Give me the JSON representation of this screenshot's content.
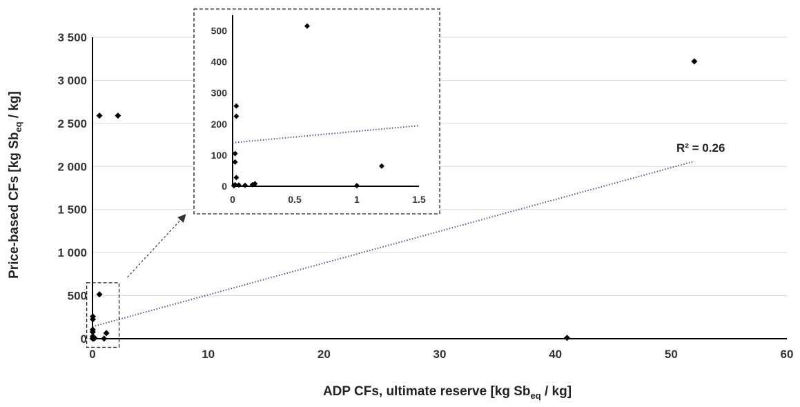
{
  "chart_data": [
    {
      "type": "scatter",
      "xlabel": "ADP CFs, ultimate reserve [kg Sb_eq / kg]",
      "ylabel": "Price-based CFs [kg Sb_eq / kg]",
      "xlabel_parts": {
        "pre": "ADP CFs, ultimate reserve [kg Sb",
        "sub": "eq",
        "post": " / kg]"
      },
      "ylabel_parts": {
        "pre": "Price-based CFs [kg Sb",
        "sub": "eq",
        "post": " / kg]"
      },
      "xlim": [
        0,
        60
      ],
      "ylim": [
        0,
        3500
      ],
      "xticks": [
        0,
        10,
        20,
        30,
        40,
        50,
        60
      ],
      "yticks": [
        0,
        500,
        1000,
        1500,
        2000,
        2500,
        3000,
        3500
      ],
      "xtick_labels": [
        "0",
        "10",
        "20",
        "30",
        "40",
        "50",
        "60"
      ],
      "ytick_labels": [
        "0",
        "500",
        "1 000",
        "1 500",
        "2 000",
        "2 500",
        "3 000",
        "3 500"
      ],
      "grid": "horizontal",
      "points": [
        {
          "x": 0.01,
          "y": 2
        },
        {
          "x": 0.02,
          "y": 5
        },
        {
          "x": 0.03,
          "y": 225
        },
        {
          "x": 0.03,
          "y": 258
        },
        {
          "x": 0.02,
          "y": 105
        },
        {
          "x": 0.02,
          "y": 78
        },
        {
          "x": 0.03,
          "y": 28
        },
        {
          "x": 0.05,
          "y": 4
        },
        {
          "x": 0.1,
          "y": 3
        },
        {
          "x": 0.16,
          "y": 5
        },
        {
          "x": 0.18,
          "y": 8
        },
        {
          "x": 0.6,
          "y": 515
        },
        {
          "x": 1.0,
          "y": 2
        },
        {
          "x": 1.2,
          "y": 65
        },
        {
          "x": 0.6,
          "y": 2590
        },
        {
          "x": 2.2,
          "y": 2590
        },
        {
          "x": 41,
          "y": 10
        },
        {
          "x": 52,
          "y": 3220
        }
      ],
      "trendline": {
        "type": "linear",
        "x": [
          0,
          52
        ],
        "y": [
          140,
          2060
        ],
        "style": "dotted",
        "color": "#4a5a86"
      },
      "annotation": "R² = 0.26",
      "marker_color": "#000000"
    },
    {
      "type": "scatter",
      "xlim": [
        0,
        1.5
      ],
      "ylim": [
        0,
        550
      ],
      "xticks": [
        0,
        0.5,
        1,
        1.5
      ],
      "yticks": [
        0,
        100,
        200,
        300,
        400,
        500
      ],
      "xtick_labels": [
        "0",
        "0.5",
        "1",
        "1.5"
      ],
      "ytick_labels": [
        "0",
        "100",
        "200",
        "300",
        "400",
        "500"
      ],
      "points": [
        {
          "x": 0.01,
          "y": 2
        },
        {
          "x": 0.02,
          "y": 5
        },
        {
          "x": 0.03,
          "y": 225
        },
        {
          "x": 0.03,
          "y": 258
        },
        {
          "x": 0.02,
          "y": 105
        },
        {
          "x": 0.02,
          "y": 78
        },
        {
          "x": 0.03,
          "y": 28
        },
        {
          "x": 0.05,
          "y": 4
        },
        {
          "x": 0.1,
          "y": 3
        },
        {
          "x": 0.16,
          "y": 5
        },
        {
          "x": 0.18,
          "y": 8
        },
        {
          "x": 0.6,
          "y": 515
        },
        {
          "x": 1.0,
          "y": 2
        },
        {
          "x": 1.2,
          "y": 65
        }
      ],
      "trendline": {
        "type": "linear",
        "x": [
          0,
          1.5
        ],
        "y": [
          140,
          195
        ],
        "style": "dotted",
        "color": "#4a5a86"
      }
    }
  ]
}
